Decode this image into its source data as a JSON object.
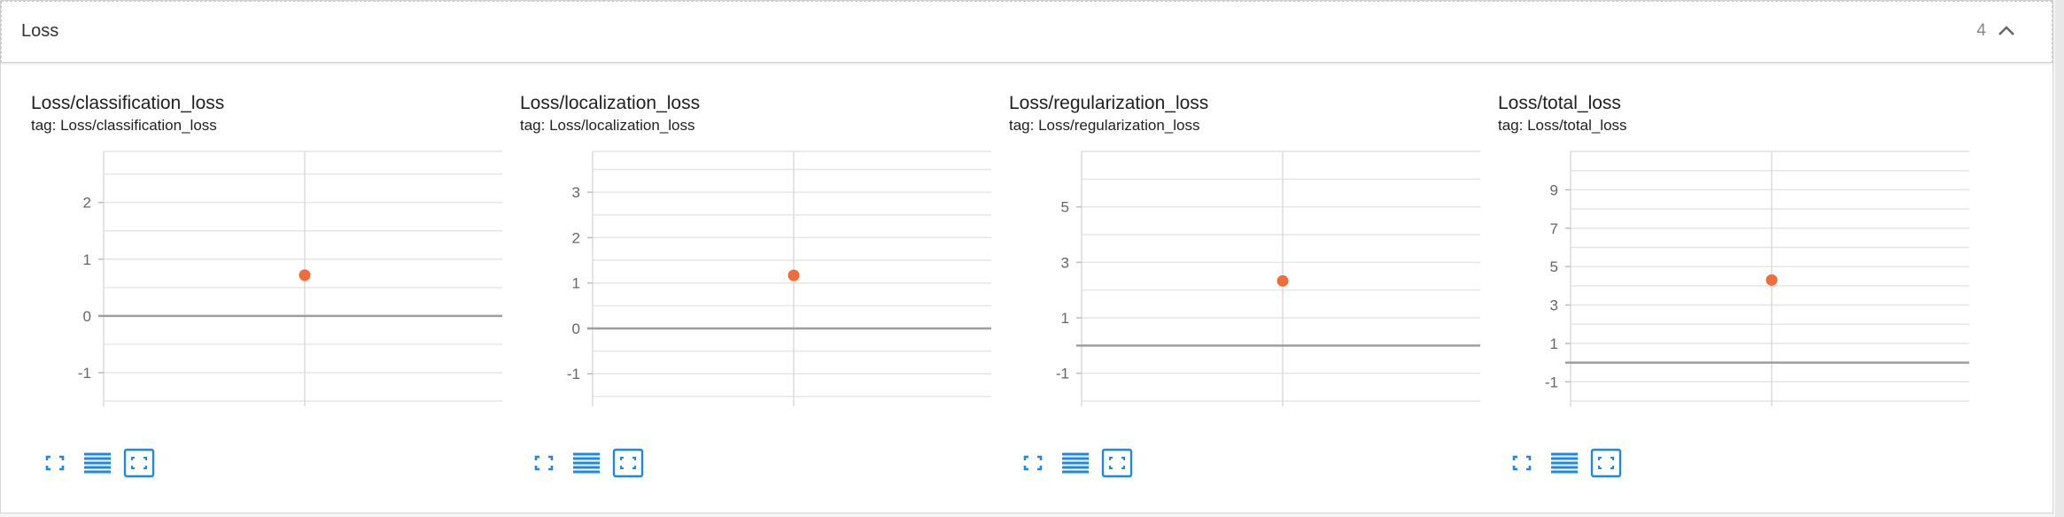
{
  "section": {
    "title": "Loss",
    "count": "4"
  },
  "icons": {
    "collapse": "chevron-up-icon",
    "fullscreen": "fullscreen-icon",
    "log_scale": "lines-icon",
    "fit_domain": "fit-domain-icon"
  },
  "colors": {
    "accent": "#1e88e5",
    "point": "#ef6c3c",
    "axis_line": "#9e9e9e",
    "grid": "#e6e6e6"
  },
  "cards": [
    {
      "title": "Loss/classification_loss",
      "tag": "tag: Loss/classification_loss"
    },
    {
      "title": "Loss/localization_loss",
      "tag": "tag: Loss/localization_loss"
    },
    {
      "title": "Loss/regularization_loss",
      "tag": "tag: Loss/regularization_loss"
    },
    {
      "title": "Loss/total_loss",
      "tag": "tag: Loss/total_loss"
    }
  ],
  "chart_data": [
    {
      "type": "scatter",
      "title": "Loss/classification_loss",
      "ylim": [
        -1.5,
        2.9
      ],
      "yticks": [
        -1,
        0,
        1,
        2
      ],
      "ytick_labels": [
        "-1",
        "0",
        "1",
        "2"
      ],
      "points": [
        {
          "y": 0.72
        }
      ],
      "grid": true
    },
    {
      "type": "scatter",
      "title": "Loss/localization_loss",
      "ylim": [
        -1.6,
        3.9
      ],
      "yticks": [
        -1,
        0,
        1,
        2,
        3
      ],
      "ytick_labels": [
        "-1",
        "0",
        "1",
        "2",
        "3"
      ],
      "points": [
        {
          "y": 1.17
        }
      ],
      "grid": true
    },
    {
      "type": "scatter",
      "title": "Loss/regularization_loss",
      "ylim": [
        -2.0,
        7.0
      ],
      "yticks": [
        -1,
        1,
        3,
        5
      ],
      "ytick_labels": [
        "-1",
        "1",
        "3",
        "5"
      ],
      "points": [
        {
          "y": 2.33
        }
      ],
      "grid": true
    },
    {
      "type": "scatter",
      "title": "Loss/total_loss",
      "ylim": [
        -2.0,
        11.0
      ],
      "yticks": [
        -1,
        1,
        3,
        5,
        7,
        9
      ],
      "ytick_labels": [
        "-1",
        "1",
        "3",
        "5",
        "7",
        "9"
      ],
      "points": [
        {
          "y": 4.3
        }
      ],
      "grid": true
    }
  ]
}
